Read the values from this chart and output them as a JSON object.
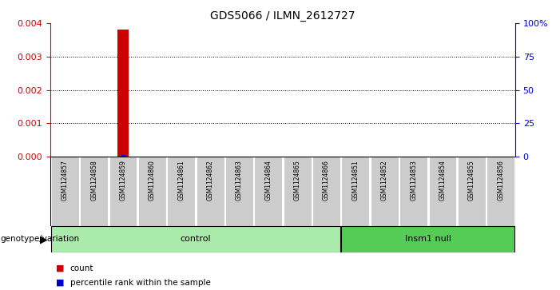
{
  "title": "GDS5066 / ILMN_2612727",
  "samples": [
    "GSM1124857",
    "GSM1124858",
    "GSM1124859",
    "GSM1124860",
    "GSM1124861",
    "GSM1124862",
    "GSM1124863",
    "GSM1124864",
    "GSM1124865",
    "GSM1124866",
    "GSM1124851",
    "GSM1124852",
    "GSM1124853",
    "GSM1124854",
    "GSM1124855",
    "GSM1124856"
  ],
  "count_values": [
    0,
    0,
    0.0038,
    0,
    0,
    0,
    0,
    0,
    0,
    0,
    0,
    0,
    0,
    0,
    0,
    0
  ],
  "percentile_values": [
    0,
    0,
    1,
    0,
    0,
    0,
    0,
    0,
    0,
    0,
    0,
    0,
    0,
    0,
    0,
    0
  ],
  "groups": [
    {
      "label": "control",
      "start": 0,
      "end": 10,
      "color": "#AAEAAA"
    },
    {
      "label": "Insm1 null",
      "start": 10,
      "end": 16,
      "color": "#55CC55"
    }
  ],
  "left_ylim": [
    0,
    0.004
  ],
  "right_ylim": [
    0,
    100
  ],
  "left_yticks": [
    0,
    0.001,
    0.002,
    0.003,
    0.004
  ],
  "right_yticks": [
    0,
    25,
    50,
    75,
    100
  ],
  "right_yticklabels": [
    "0",
    "25",
    "50",
    "75",
    "100%"
  ],
  "bar_color_red": "#CC0000",
  "bar_color_blue": "#0000CC",
  "tick_label_color_left": "#CC0000",
  "tick_label_color_right": "#0000CC",
  "sample_bg_color": "#CCCCCC",
  "genotype_label": "genotype/variation",
  "legend_count_color": "#CC0000",
  "legend_percentile_color": "#0000CC",
  "highlight_sample_index": 2,
  "bar_width": 0.4
}
